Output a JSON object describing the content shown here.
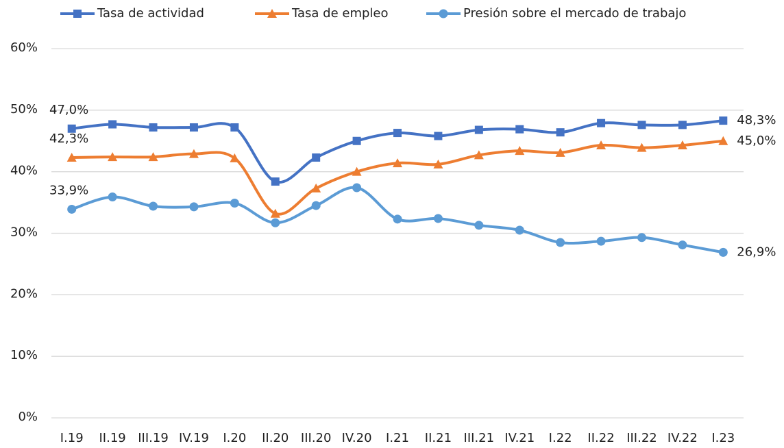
{
  "chart_data": {
    "type": "line",
    "categories": [
      "I.19",
      "II.19",
      "III.19",
      "IV.19",
      "I.20",
      "II.20",
      "III.20",
      "IV.20",
      "I.21",
      "II.21",
      "III.21",
      "IV.21",
      "I.22",
      "II.22",
      "III.22",
      "IV.22",
      "I.23"
    ],
    "series": [
      {
        "name": "Tasa de actividad",
        "color": "#4472c4",
        "marker": "square",
        "values": [
          47.0,
          47.7,
          47.2,
          47.2,
          47.2,
          38.4,
          42.3,
          45.0,
          46.3,
          45.8,
          46.8,
          46.9,
          46.4,
          47.9,
          47.6,
          47.6,
          48.3
        ],
        "value_labels": [
          "47,0%",
          null,
          null,
          null,
          null,
          null,
          null,
          null,
          null,
          null,
          null,
          null,
          null,
          null,
          null,
          null,
          "48,3%"
        ]
      },
      {
        "name": "Tasa de empleo",
        "color": "#ed7d31",
        "marker": "triangle",
        "values": [
          42.3,
          42.4,
          42.4,
          42.9,
          42.2,
          33.2,
          37.3,
          40.0,
          41.4,
          41.2,
          42.7,
          43.4,
          43.1,
          44.3,
          43.9,
          44.3,
          45.0
        ],
        "value_labels": [
          "42,3%",
          null,
          null,
          null,
          null,
          null,
          null,
          null,
          null,
          null,
          null,
          null,
          null,
          null,
          null,
          null,
          "45,0%"
        ]
      },
      {
        "name": "Presión sobre el mercado de trabajo",
        "color": "#5b9bd5",
        "marker": "circle",
        "values": [
          33.9,
          35.9,
          34.4,
          34.3,
          34.9,
          31.7,
          34.5,
          37.4,
          32.3,
          32.4,
          31.3,
          30.5,
          28.5,
          28.7,
          29.3,
          28.1,
          26.9
        ],
        "value_labels": [
          "33,9%",
          null,
          null,
          null,
          null,
          null,
          null,
          null,
          null,
          null,
          null,
          null,
          null,
          null,
          null,
          null,
          "26,9%"
        ]
      }
    ],
    "ylim": [
      0,
      60
    ],
    "yticks": [
      {
        "value": 0,
        "label": "0%"
      },
      {
        "value": 10,
        "label": "10%"
      },
      {
        "value": 20,
        "label": "20%"
      },
      {
        "value": 30,
        "label": "30%"
      },
      {
        "value": 40,
        "label": "40%"
      },
      {
        "value": 50,
        "label": "50%"
      },
      {
        "value": 60,
        "label": "60%"
      }
    ],
    "grid": true,
    "smooth": true,
    "legend": "top"
  }
}
